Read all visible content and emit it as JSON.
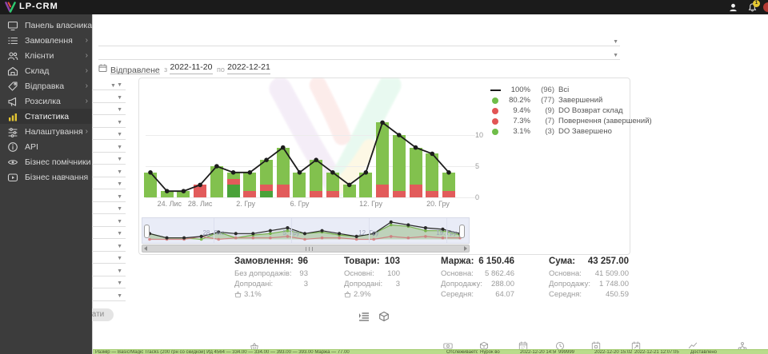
{
  "topbar": {
    "brand": "LP-CRM",
    "badge": "1"
  },
  "sidebar": {
    "chevron": "›",
    "items": [
      {
        "label": "Панель власника",
        "icon": "dashboard-icon",
        "arrow": false,
        "active": false
      },
      {
        "label": "Замовлення",
        "icon": "orders-icon",
        "arrow": true,
        "active": false
      },
      {
        "label": "Клієнти",
        "icon": "clients-icon",
        "arrow": true,
        "active": false
      },
      {
        "label": "Склад",
        "icon": "warehouse-icon",
        "arrow": true,
        "active": false
      },
      {
        "label": "Відправка",
        "icon": "shipping-icon",
        "arrow": true,
        "active": false
      },
      {
        "label": "Розсилка",
        "icon": "mailing-icon",
        "arrow": true,
        "active": false
      },
      {
        "label": "Статистика",
        "icon": "statistics-icon",
        "arrow": false,
        "active": true
      },
      {
        "label": "Налаштування",
        "icon": "settings-icon",
        "arrow": true,
        "active": false
      },
      {
        "label": "API",
        "icon": "api-icon",
        "arrow": false,
        "active": false
      },
      {
        "label": "Бізнес помічники",
        "icon": "helpers-icon",
        "arrow": false,
        "active": false
      },
      {
        "label": "Бізнес навчання",
        "icon": "training-icon",
        "arrow": false,
        "active": false
      }
    ]
  },
  "filters": {
    "left_filter_rows": 18
  },
  "toolbar": {
    "date_type": "Відправлене",
    "from_label": "з",
    "from": "2022-11-20",
    "to_label": "по",
    "to": "2022-12-21"
  },
  "search_button": "Шукати",
  "chart_data": {
    "type": "bar",
    "title": "",
    "ylim": [
      0,
      13
    ],
    "y_ticks": [
      0,
      5,
      10
    ],
    "x_ticks": [
      {
        "label": "24. Лис",
        "pos": 1.15
      },
      {
        "label": "28. Лис",
        "pos": 3.0
      },
      {
        "label": "2. Гру",
        "pos": 5.75
      },
      {
        "label": "6. Гру",
        "pos": 9.0
      },
      {
        "label": "12. Гру",
        "pos": 13.3
      },
      {
        "label": "20. Гру",
        "pos": 17.35
      }
    ],
    "colors": {
      "green": "#82c14e",
      "dark_green": "#4aa23a",
      "red": "#e25b5b",
      "line": "#1c1c1c"
    },
    "series": [
      {
        "name": "Всі",
        "type": "line",
        "values": [
          4,
          1,
          1,
          2,
          5,
          4,
          4,
          6,
          8,
          4,
          6,
          4,
          2,
          4,
          12,
          10,
          8,
          7,
          4
        ]
      },
      {
        "name": "Завершений",
        "type": "bar-green",
        "values": [
          4,
          1,
          1,
          0,
          5,
          1,
          3,
          4,
          6,
          4,
          5,
          3,
          2,
          4,
          10,
          9,
          6,
          6,
          3
        ]
      },
      {
        "name": "Повернення/Возврат",
        "type": "bar-red",
        "values": [
          0,
          0,
          0,
          2,
          0,
          1,
          1,
          1,
          2,
          0,
          1,
          1,
          0,
          0,
          2,
          1,
          2,
          1,
          1
        ]
      },
      {
        "name": "DO Завершено",
        "type": "bar-darkgreen",
        "values": [
          0,
          0,
          0,
          0,
          0,
          2,
          0,
          1,
          0,
          0,
          0,
          0,
          0,
          0,
          0,
          0,
          0,
          0,
          0
        ]
      }
    ],
    "legend": [
      {
        "swatch": "line",
        "color": "#1c1c1c",
        "pct": "100%",
        "count": "(96)",
        "label": "Всі"
      },
      {
        "swatch": "dot",
        "color": "#6fbd49",
        "pct": "80.2%",
        "count": "(77)",
        "label": "Завершений"
      },
      {
        "swatch": "dot",
        "color": "#e25555",
        "pct": "9.4%",
        "count": "(9)",
        "label": "DO Возврат склад"
      },
      {
        "swatch": "dot",
        "color": "#e25555",
        "pct": "7.3%",
        "count": "(7)",
        "label": "Повернення (завершений)"
      },
      {
        "swatch": "dot",
        "color": "#6fbd49",
        "pct": "3.1%",
        "count": "(3)",
        "label": "DO Завершено"
      }
    ],
    "mini_ticks": [
      {
        "label": "28. Лис",
        "x": 89
      },
      {
        "label": "5. Гру",
        "x": 186
      },
      {
        "label": "12. Гру",
        "x": 283
      },
      {
        "label": "19. Гру",
        "x": 380
      }
    ]
  },
  "summary": {
    "columns": [
      {
        "title": "Замовлення:",
        "value": "96",
        "rows": [
          {
            "label": "Без допродажів:",
            "value": "93"
          },
          {
            "label": "Допродані:",
            "value": "3"
          }
        ],
        "pct": "3.1%"
      },
      {
        "title": "Товари:",
        "value": "103",
        "rows": [
          {
            "label": "Основні:",
            "value": "100"
          },
          {
            "label": "Допродані:",
            "value": "3"
          }
        ],
        "pct": "2.9%"
      },
      {
        "title": "Маржа:",
        "value": "6 150.46",
        "rows": [
          {
            "label": "Основна:",
            "value": "5 862.46"
          },
          {
            "label": "Допродажу:",
            "value": "288.00"
          },
          {
            "label": "Середня:",
            "value": "64.07"
          }
        ],
        "pct": null
      },
      {
        "title": "Сума:",
        "value": "43 257.00",
        "rows": [
          {
            "label": "Основна:",
            "value": "41 509.00"
          },
          {
            "label": "Допродажу:",
            "value": "1 748.00"
          },
          {
            "label": "Середня:",
            "value": "450.59"
          }
        ],
        "pct": null
      }
    ]
  },
  "view_toggles": [
    "list-view-icon",
    "cube-view-icon"
  ],
  "bottom_table": {
    "header_icons": [
      "basket-icon",
      "banknote-icon",
      "package-icon",
      "calendar-day-icon",
      "clock-icon",
      "calendar-box-icon",
      "calendar-arrow-icon",
      "chart-area-icon",
      "share-icon"
    ],
    "row_left": "Размір — Basic/Magic Tracks (200 грн со скидкой) Ид 4564 — 334.00 — 334.00 — 393.00 — 393.00 Маржа — 77.00",
    "row_cells": [
      "Отслеживается",
      "Нурок во",
      "2022-12-20 14:50:06",
      "999999",
      "2022-12-20 15:02:29",
      "2022-12-21 12:07:05",
      "Доставлено",
      ""
    ]
  }
}
